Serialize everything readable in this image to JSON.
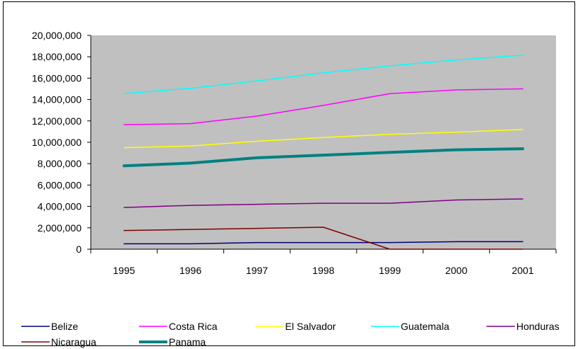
{
  "chart_data": {
    "type": "line",
    "title": "",
    "xlabel": "",
    "ylabel": "",
    "categories": [
      "1995",
      "1996",
      "1997",
      "1998",
      "1999",
      "2000",
      "2001"
    ],
    "ylim": [
      0,
      20000000
    ],
    "yticks": [
      0,
      2000000,
      4000000,
      6000000,
      8000000,
      10000000,
      12000000,
      14000000,
      16000000,
      18000000,
      20000000
    ],
    "ytick_labels": [
      "0",
      "2,000,000",
      "4,000,000",
      "6,000,000",
      "8,000,000",
      "10,000,000",
      "12,000,000",
      "14,000,000",
      "16,000,000",
      "18,000,000",
      "20,000,000"
    ],
    "plot_background": "#c0c0c0",
    "grid": false,
    "legend_position": "bottom",
    "series": [
      {
        "name": "Belize",
        "color": "#000080",
        "bold": false,
        "values": [
          500000,
          500000,
          620000,
          620000,
          620000,
          700000,
          700000
        ]
      },
      {
        "name": "Costa Rica",
        "color": "#ff00ff",
        "bold": false,
        "values": [
          11650000,
          11750000,
          12450000,
          13450000,
          14550000,
          14900000,
          15000000
        ]
      },
      {
        "name": "El Salvador",
        "color": "#ffff00",
        "bold": false,
        "values": [
          9500000,
          9650000,
          10100000,
          10450000,
          10750000,
          10950000,
          11200000
        ]
      },
      {
        "name": "Guatemala",
        "color": "#00ffff",
        "bold": false,
        "values": [
          14550000,
          15050000,
          15750000,
          16500000,
          17150000,
          17700000,
          18150000
        ]
      },
      {
        "name": "Honduras",
        "color": "#800080",
        "bold": false,
        "values": [
          3900000,
          4100000,
          4200000,
          4300000,
          4300000,
          4600000,
          4700000
        ]
      },
      {
        "name": "Nicaragua",
        "color": "#800000",
        "bold": false,
        "values": [
          1750000,
          1850000,
          1950000,
          2050000,
          0,
          0,
          0
        ]
      },
      {
        "name": "Panama",
        "color": "#008080",
        "bold": true,
        "values": [
          7800000,
          8050000,
          8550000,
          8800000,
          9050000,
          9300000,
          9400000
        ]
      }
    ]
  }
}
